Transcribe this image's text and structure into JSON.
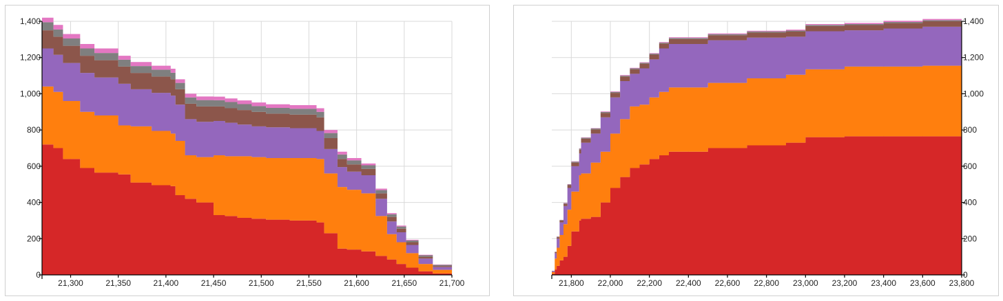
{
  "colors": {
    "red": "#d62728",
    "orange": "#ff7f0e",
    "purple": "#9467bd",
    "brown": "#8c564b",
    "gray": "#7f7f7f",
    "pink": "#e377c2"
  },
  "chart_data": [
    {
      "type": "area",
      "stacked": true,
      "step": true,
      "grid": true,
      "y_axis_side": "left",
      "xlim": [
        21270,
        21700
      ],
      "ylim": [
        0,
        1400
      ],
      "x_ticks": [
        21300,
        21350,
        21400,
        21450,
        21500,
        21550,
        21600,
        21650,
        21700
      ],
      "x_tick_labels": [
        "21,300",
        "21,350",
        "21,400",
        "21,450",
        "21,500",
        "21,550",
        "21,600",
        "21,650",
        "21,700"
      ],
      "y_ticks": [
        0,
        200,
        400,
        600,
        800,
        1000,
        1200,
        1400
      ],
      "y_tick_labels": [
        "0",
        "200",
        "400",
        "600",
        "800",
        "1,000",
        "1,200",
        "1,400"
      ],
      "series": [
        {
          "color": "red",
          "x": [
            21270,
            21282,
            21292,
            21310,
            21325,
            21350,
            21363,
            21385,
            21405,
            21410,
            21420,
            21432,
            21450,
            21462,
            21475,
            21490,
            21505,
            21530,
            21558,
            21566,
            21580,
            21590,
            21605,
            21620,
            21632,
            21642,
            21652,
            21665,
            21680,
            21700
          ],
          "values": [
            720,
            700,
            640,
            590,
            565,
            555,
            510,
            495,
            490,
            440,
            420,
            400,
            330,
            325,
            315,
            310,
            305,
            300,
            290,
            230,
            145,
            140,
            130,
            105,
            85,
            60,
            40,
            20,
            8,
            3
          ]
        },
        {
          "color": "orange",
          "x": [
            21270,
            21282,
            21292,
            21310,
            21325,
            21350,
            21363,
            21385,
            21405,
            21410,
            21420,
            21432,
            21450,
            21462,
            21475,
            21490,
            21505,
            21530,
            21558,
            21566,
            21580,
            21590,
            21605,
            21620,
            21632,
            21642,
            21652,
            21665,
            21680,
            21700
          ],
          "values": [
            320,
            310,
            320,
            310,
            315,
            270,
            310,
            300,
            290,
            300,
            240,
            250,
            330,
            330,
            340,
            340,
            340,
            345,
            350,
            330,
            340,
            330,
            320,
            220,
            140,
            120,
            80,
            40,
            20,
            8
          ]
        },
        {
          "color": "purple",
          "x": [
            21270,
            21282,
            21292,
            21310,
            21325,
            21350,
            21363,
            21385,
            21405,
            21410,
            21420,
            21432,
            21450,
            21462,
            21475,
            21490,
            21505,
            21530,
            21558,
            21566,
            21580,
            21590,
            21605,
            21620,
            21632,
            21642,
            21652,
            21665,
            21680,
            21700
          ],
          "values": [
            210,
            205,
            210,
            215,
            210,
            230,
            205,
            210,
            210,
            200,
            200,
            195,
            190,
            185,
            175,
            170,
            170,
            165,
            155,
            135,
            110,
            100,
            100,
            95,
            70,
            55,
            45,
            30,
            15,
            5
          ]
        },
        {
          "color": "brown",
          "x": [
            21270,
            21282,
            21292,
            21310,
            21325,
            21350,
            21363,
            21385,
            21405,
            21410,
            21420,
            21432,
            21450,
            21462,
            21475,
            21490,
            21505,
            21530,
            21558,
            21566,
            21580,
            21590,
            21605,
            21620,
            21632,
            21642,
            21652,
            21665,
            21680,
            21700
          ],
          "values": [
            100,
            100,
            95,
            95,
            95,
            95,
            90,
            90,
            90,
            85,
            85,
            85,
            80,
            80,
            80,
            80,
            75,
            75,
            75,
            60,
            45,
            40,
            35,
            30,
            25,
            20,
            15,
            10,
            6,
            3
          ]
        },
        {
          "color": "gray",
          "x": [
            21270,
            21282,
            21292,
            21310,
            21325,
            21350,
            21363,
            21385,
            21405,
            21410,
            21420,
            21432,
            21450,
            21462,
            21475,
            21490,
            21505,
            21530,
            21558,
            21566,
            21580,
            21590,
            21605,
            21620,
            21632,
            21642,
            21652,
            21665,
            21680,
            21700
          ],
          "values": [
            45,
            40,
            40,
            40,
            40,
            38,
            38,
            38,
            36,
            35,
            35,
            35,
            34,
            34,
            33,
            32,
            32,
            32,
            30,
            28,
            25,
            22,
            20,
            18,
            15,
            12,
            10,
            8,
            6,
            4
          ]
        },
        {
          "color": "pink",
          "x": [
            21270,
            21282,
            21292,
            21310,
            21325,
            21350,
            21363,
            21385,
            21405,
            21410,
            21420,
            21432,
            21450,
            21462,
            21475,
            21490,
            21505,
            21530,
            21558,
            21566,
            21580,
            21590,
            21605,
            21620,
            21632,
            21642,
            21652,
            21665,
            21680,
            21700
          ],
          "values": [
            25,
            25,
            25,
            25,
            25,
            22,
            22,
            22,
            22,
            20,
            20,
            20,
            20,
            20,
            20,
            20,
            20,
            20,
            20,
            17,
            15,
            13,
            10,
            8,
            6,
            5,
            4,
            3,
            2,
            1
          ]
        }
      ]
    },
    {
      "type": "area",
      "stacked": true,
      "step": true,
      "grid": true,
      "y_axis_side": "right",
      "xlim": [
        21700,
        23800
      ],
      "ylim": [
        0,
        1400
      ],
      "x_ticks": [
        21800,
        22000,
        22200,
        22400,
        22600,
        22800,
        23000,
        23200,
        23400,
        23600,
        23800
      ],
      "x_tick_labels": [
        "21,800",
        "22,000",
        "22,200",
        "22,400",
        "22,600",
        "22,800",
        "23,000",
        "23,200",
        "23,400",
        "23,600",
        "23,800"
      ],
      "y_ticks": [
        0,
        200,
        400,
        600,
        800,
        1000,
        1200,
        1400
      ],
      "y_tick_labels": [
        "0",
        "200",
        "400",
        "600",
        "800",
        "1,000",
        "1,200",
        "1,400"
      ],
      "series": [
        {
          "color": "red",
          "x": [
            21700,
            21715,
            21725,
            21740,
            21760,
            21780,
            21800,
            21840,
            21850,
            21900,
            21950,
            22000,
            22050,
            22100,
            22150,
            22200,
            22250,
            22300,
            22500,
            22700,
            22900,
            23000,
            23200,
            23400,
            23600,
            23800
          ],
          "values": [
            5,
            30,
            50,
            80,
            100,
            160,
            240,
            300,
            310,
            320,
            400,
            480,
            540,
            590,
            610,
            640,
            660,
            680,
            700,
            715,
            730,
            760,
            765,
            765,
            765,
            765
          ]
        },
        {
          "color": "orange",
          "x": [
            21700,
            21715,
            21725,
            21740,
            21760,
            21780,
            21800,
            21840,
            21850,
            21900,
            21950,
            22000,
            22050,
            22100,
            22150,
            22200,
            22250,
            22300,
            22500,
            22700,
            22900,
            23000,
            23200,
            23400,
            23600,
            23800
          ],
          "values": [
            10,
            60,
            100,
            140,
            180,
            200,
            220,
            250,
            250,
            300,
            280,
            300,
            320,
            340,
            330,
            340,
            350,
            355,
            360,
            370,
            375,
            375,
            385,
            385,
            390,
            390
          ]
        },
        {
          "color": "purple",
          "x": [
            21700,
            21715,
            21725,
            21740,
            21760,
            21780,
            21800,
            21840,
            21850,
            21900,
            21950,
            22000,
            22050,
            22100,
            22150,
            22200,
            22250,
            22300,
            22500,
            22700,
            22900,
            23000,
            23200,
            23400,
            23600,
            23800
          ],
          "values": [
            5,
            30,
            50,
            70,
            100,
            120,
            140,
            120,
            170,
            160,
            190,
            200,
            210,
            180,
            200,
            210,
            240,
            240,
            235,
            225,
            210,
            210,
            200,
            210,
            215,
            220
          ]
        },
        {
          "color": "brown",
          "x": [
            21700,
            21715,
            21725,
            21740,
            21760,
            21780,
            21800,
            21840,
            21850,
            21900,
            21950,
            22000,
            22050,
            22100,
            22150,
            22200,
            22250,
            22300,
            22500,
            22700,
            22900,
            23000,
            23200,
            23400,
            23600,
            23800
          ],
          "values": [
            2,
            5,
            8,
            10,
            12,
            15,
            20,
            22,
            22,
            23,
            24,
            25,
            25,
            25,
            26,
            26,
            27,
            27,
            28,
            28,
            28,
            29,
            29,
            30,
            30,
            30
          ]
        },
        {
          "color": "gray",
          "x": [
            21700,
            21715,
            21725,
            21740,
            21760,
            21780,
            21800,
            21840,
            21850,
            21900,
            21950,
            22000,
            22050,
            22100,
            22150,
            22200,
            22250,
            22300,
            22500,
            22700,
            22900,
            23000,
            23200,
            23400,
            23600,
            23800
          ],
          "values": [
            1,
            2,
            3,
            3,
            4,
            4,
            5,
            5,
            5,
            5,
            5,
            5,
            5,
            5,
            5,
            5,
            5,
            6,
            6,
            6,
            6,
            6,
            6,
            6,
            6,
            6
          ]
        },
        {
          "color": "pink",
          "x": [
            21700,
            21715,
            21725,
            21740,
            21760,
            21780,
            21800,
            21840,
            21850,
            21900,
            21950,
            22000,
            22050,
            22100,
            22150,
            22200,
            22250,
            22300,
            22500,
            22700,
            22900,
            23000,
            23200,
            23400,
            23600,
            23800
          ],
          "values": [
            0,
            1,
            1,
            1,
            2,
            2,
            2,
            2,
            2,
            2,
            3,
            3,
            3,
            3,
            3,
            3,
            3,
            4,
            4,
            4,
            5,
            5,
            6,
            7,
            7,
            8
          ]
        }
      ]
    }
  ]
}
